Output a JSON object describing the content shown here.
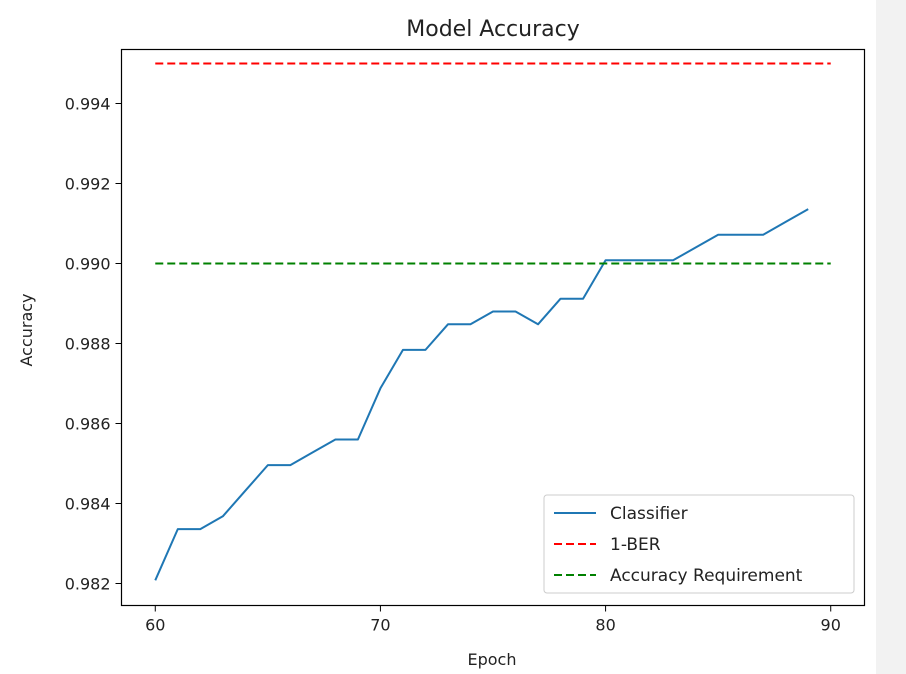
{
  "chart_data": {
    "type": "line",
    "title": "Model Accuracy",
    "xlabel": "Epoch",
    "ylabel": "Accuracy",
    "xlim": [
      58.5,
      91.5
    ],
    "ylim": [
      0.98145,
      0.99535
    ],
    "xticks": [
      60,
      70,
      80,
      90
    ],
    "xtick_labels": [
      "60",
      "70",
      "80",
      "90"
    ],
    "yticks": [
      0.982,
      0.984,
      0.986,
      0.988,
      0.99,
      0.992,
      0.994
    ],
    "ytick_labels": [
      "0.982",
      "0.984",
      "0.986",
      "0.988",
      "0.990",
      "0.992",
      "0.994"
    ],
    "grid": false,
    "legend_position": "lower-right",
    "series": [
      {
        "name": "Classifier",
        "style": "solid",
        "color": "#1f77b4",
        "x": [
          60,
          61,
          62,
          63,
          64,
          65,
          66,
          67,
          68,
          69,
          70,
          71,
          72,
          73,
          74,
          75,
          76,
          77,
          78,
          79,
          80,
          81,
          82,
          83,
          84,
          85,
          86,
          87,
          88,
          89
        ],
        "y": [
          0.98208,
          0.98336,
          0.98336,
          0.98368,
          0.98432,
          0.98496,
          0.98496,
          0.98528,
          0.9856,
          0.9856,
          0.98688,
          0.98784,
          0.98784,
          0.98848,
          0.98848,
          0.9888,
          0.9888,
          0.98848,
          0.98912,
          0.98912,
          0.99008,
          0.99008,
          0.99008,
          0.99008,
          0.9904,
          0.99072,
          0.99072,
          0.99072,
          0.99104,
          0.99136
        ]
      },
      {
        "name": "1-BER",
        "style": "dashed",
        "color": "#ff0000",
        "x": [
          60,
          90
        ],
        "y": [
          0.995,
          0.995
        ]
      },
      {
        "name": "Accuracy Requirement",
        "style": "dashed",
        "color": "#008000",
        "x": [
          60,
          90
        ],
        "y": [
          0.99,
          0.99
        ]
      }
    ]
  }
}
